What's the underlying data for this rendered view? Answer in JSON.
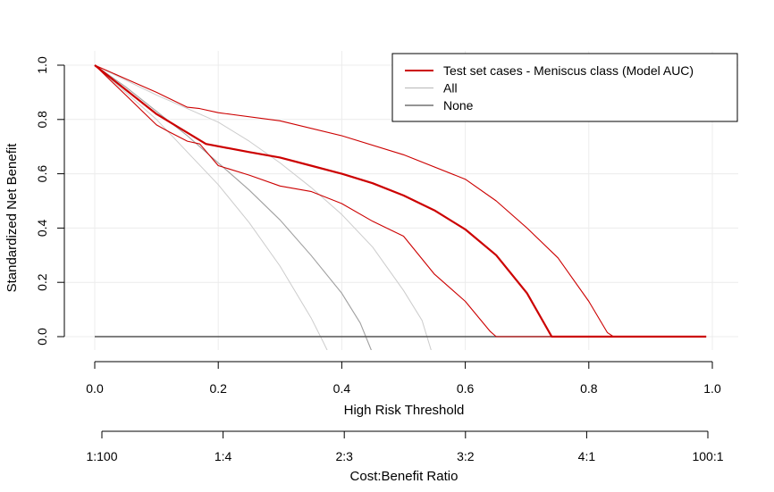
{
  "chart_data": {
    "type": "line",
    "xlabel": "High Risk Threshold",
    "ylabel": "Standardized Net Benefit",
    "xlim": [
      0,
      1
    ],
    "ylim": [
      0,
      1
    ],
    "x_ticks": [
      "0.0",
      "0.2",
      "0.4",
      "0.6",
      "0.8",
      "1.0"
    ],
    "y_ticks": [
      "0.0",
      "0.2",
      "0.4",
      "0.6",
      "0.8",
      "1.0"
    ],
    "secondary_axis": {
      "label": "Cost:Benefit Ratio",
      "ticks": [
        {
          "x": 0.0,
          "label": "1:100"
        },
        {
          "x": 0.2,
          "label": "1:4"
        },
        {
          "x": 0.4,
          "label": "2:3"
        },
        {
          "x": 0.6,
          "label": "3:2"
        },
        {
          "x": 0.8,
          "label": "4:1"
        },
        {
          "x": 1.0,
          "label": "100:1"
        }
      ]
    },
    "grid": true,
    "legend_position": "top-right",
    "legend": [
      {
        "label": "Test set cases - Meniscus class (Model AUC)",
        "color": "#cc0000"
      },
      {
        "label": "All",
        "color": "#c0c0c0"
      },
      {
        "label": "None",
        "color": "#555555"
      }
    ],
    "series": [
      {
        "name": "Test set cases - Meniscus class (Model AUC)",
        "role": "model",
        "color": "#cc0000",
        "x": [
          0,
          0.05,
          0.1,
          0.18,
          0.25,
          0.3,
          0.35,
          0.4,
          0.45,
          0.5,
          0.55,
          0.6,
          0.65,
          0.7,
          0.74,
          0.75,
          0.8,
          0.85,
          0.9,
          0.95,
          0.99
        ],
        "y": [
          1.0,
          0.91,
          0.82,
          0.71,
          0.68,
          0.66,
          0.63,
          0.6,
          0.565,
          0.52,
          0.465,
          0.395,
          0.3,
          0.16,
          0.0,
          0.0,
          0.0,
          0.0,
          0.0,
          0.0,
          0.0
        ]
      },
      {
        "name": "",
        "role": "upper-ci",
        "color": "#cc0000",
        "x": [
          0,
          0.05,
          0.1,
          0.15,
          0.17,
          0.2,
          0.3,
          0.4,
          0.5,
          0.6,
          0.65,
          0.7,
          0.75,
          0.8,
          0.83,
          0.84,
          0.9,
          0.95,
          0.99
        ],
        "y": [
          1.0,
          0.95,
          0.9,
          0.845,
          0.84,
          0.825,
          0.795,
          0.74,
          0.67,
          0.58,
          0.5,
          0.4,
          0.29,
          0.13,
          0.015,
          0.0,
          0.0,
          0.0,
          0.0
        ]
      },
      {
        "name": "",
        "role": "lower-ci",
        "color": "#cc0000",
        "x": [
          0,
          0.05,
          0.1,
          0.12,
          0.15,
          0.17,
          0.2,
          0.25,
          0.3,
          0.35,
          0.4,
          0.45,
          0.5,
          0.55,
          0.6,
          0.64,
          0.65,
          0.7,
          0.75,
          0.8,
          0.85,
          0.9,
          0.95,
          0.99
        ],
        "y": [
          1.0,
          0.89,
          0.78,
          0.755,
          0.72,
          0.71,
          0.63,
          0.595,
          0.555,
          0.535,
          0.49,
          0.425,
          0.37,
          0.23,
          0.13,
          0.02,
          0.0,
          0.0,
          0.0,
          0.0,
          0.0,
          0.0,
          0.0,
          0.0
        ]
      },
      {
        "name": "All",
        "role": "all",
        "color": "#a0a0a0",
        "x": [
          0,
          0.05,
          0.1,
          0.15,
          0.2,
          0.25,
          0.3,
          0.35,
          0.4,
          0.43,
          0.455
        ],
        "y": [
          1.0,
          0.92,
          0.83,
          0.74,
          0.64,
          0.54,
          0.43,
          0.3,
          0.16,
          0.05,
          -0.09
        ]
      },
      {
        "name": "",
        "role": "all-ci-lower",
        "color": "#cccccc",
        "x": [
          0,
          0.05,
          0.1,
          0.15,
          0.2,
          0.25,
          0.3,
          0.35,
          0.37,
          0.385
        ],
        "y": [
          1.0,
          0.9,
          0.8,
          0.68,
          0.56,
          0.42,
          0.26,
          0.07,
          -0.02,
          -0.09
        ]
      },
      {
        "name": "",
        "role": "all-ci-upper",
        "color": "#cccccc",
        "x": [
          0,
          0.1,
          0.16,
          0.2,
          0.25,
          0.3,
          0.35,
          0.4,
          0.45,
          0.5,
          0.53,
          0.55
        ],
        "y": [
          1.0,
          0.89,
          0.83,
          0.79,
          0.72,
          0.64,
          0.55,
          0.45,
          0.33,
          0.17,
          0.06,
          -0.09
        ]
      },
      {
        "name": "None",
        "role": "none",
        "color": "#555555",
        "x": [
          0,
          0.99
        ],
        "y": [
          0,
          0
        ]
      }
    ]
  }
}
